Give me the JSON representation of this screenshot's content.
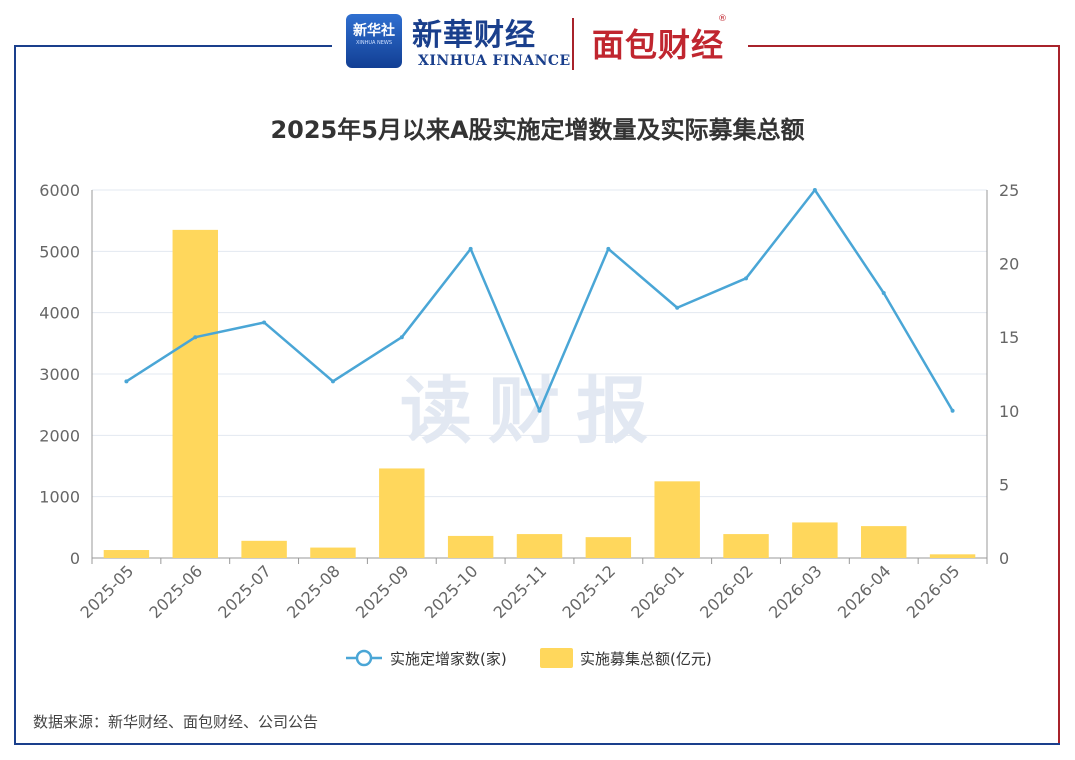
{
  "header": {
    "logo_box_text": "新华社",
    "logo_box_sub": "XINHUA NEWS",
    "brand_name": "新華财经",
    "brand_name_en": "XINHUA FINANCE",
    "partner_name": "面包财经",
    "partner_reg": "®"
  },
  "watermark": "读财报",
  "source": "数据来源：新华财经、面包财经、公司公告",
  "colors": {
    "bar": "#FFD75C",
    "line": "#4AA6D6",
    "grid": "#E3E8F0",
    "axis_text": "#666666",
    "frame_blue": "#1A3F8C",
    "frame_red": "#A8232B"
  },
  "chart_data": {
    "type": "bar+line",
    "title": "2025年5月以来A股实施定增数量及实际募集总额",
    "categories": [
      "2025-05",
      "2025-06",
      "2025-07",
      "2025-08",
      "2025-09",
      "2025-10",
      "2025-11",
      "2025-12",
      "2026-01",
      "2026-02",
      "2026-03",
      "2026-04",
      "2026-05"
    ],
    "series": [
      {
        "name": "实施募集总额(亿元)",
        "type": "bar",
        "axis": "left",
        "values": [
          130,
          5350,
          280,
          170,
          1460,
          360,
          390,
          340,
          1250,
          390,
          580,
          520,
          60
        ]
      },
      {
        "name": "实施定增家数(家)",
        "type": "line",
        "axis": "right",
        "values": [
          12,
          15,
          16,
          12,
          15,
          21,
          10,
          21,
          17,
          19,
          25,
          18,
          10
        ]
      }
    ],
    "left_axis": {
      "ylim": [
        0,
        6000
      ],
      "ticks": [
        "0",
        "1000",
        "2000",
        "3000",
        "4000",
        "5000",
        "6000"
      ]
    },
    "right_axis": {
      "ylim": [
        0,
        25
      ],
      "ticks": [
        "0",
        "5",
        "10",
        "15",
        "20",
        "25"
      ]
    },
    "grid": true,
    "legend_placement": "bottom-center"
  }
}
